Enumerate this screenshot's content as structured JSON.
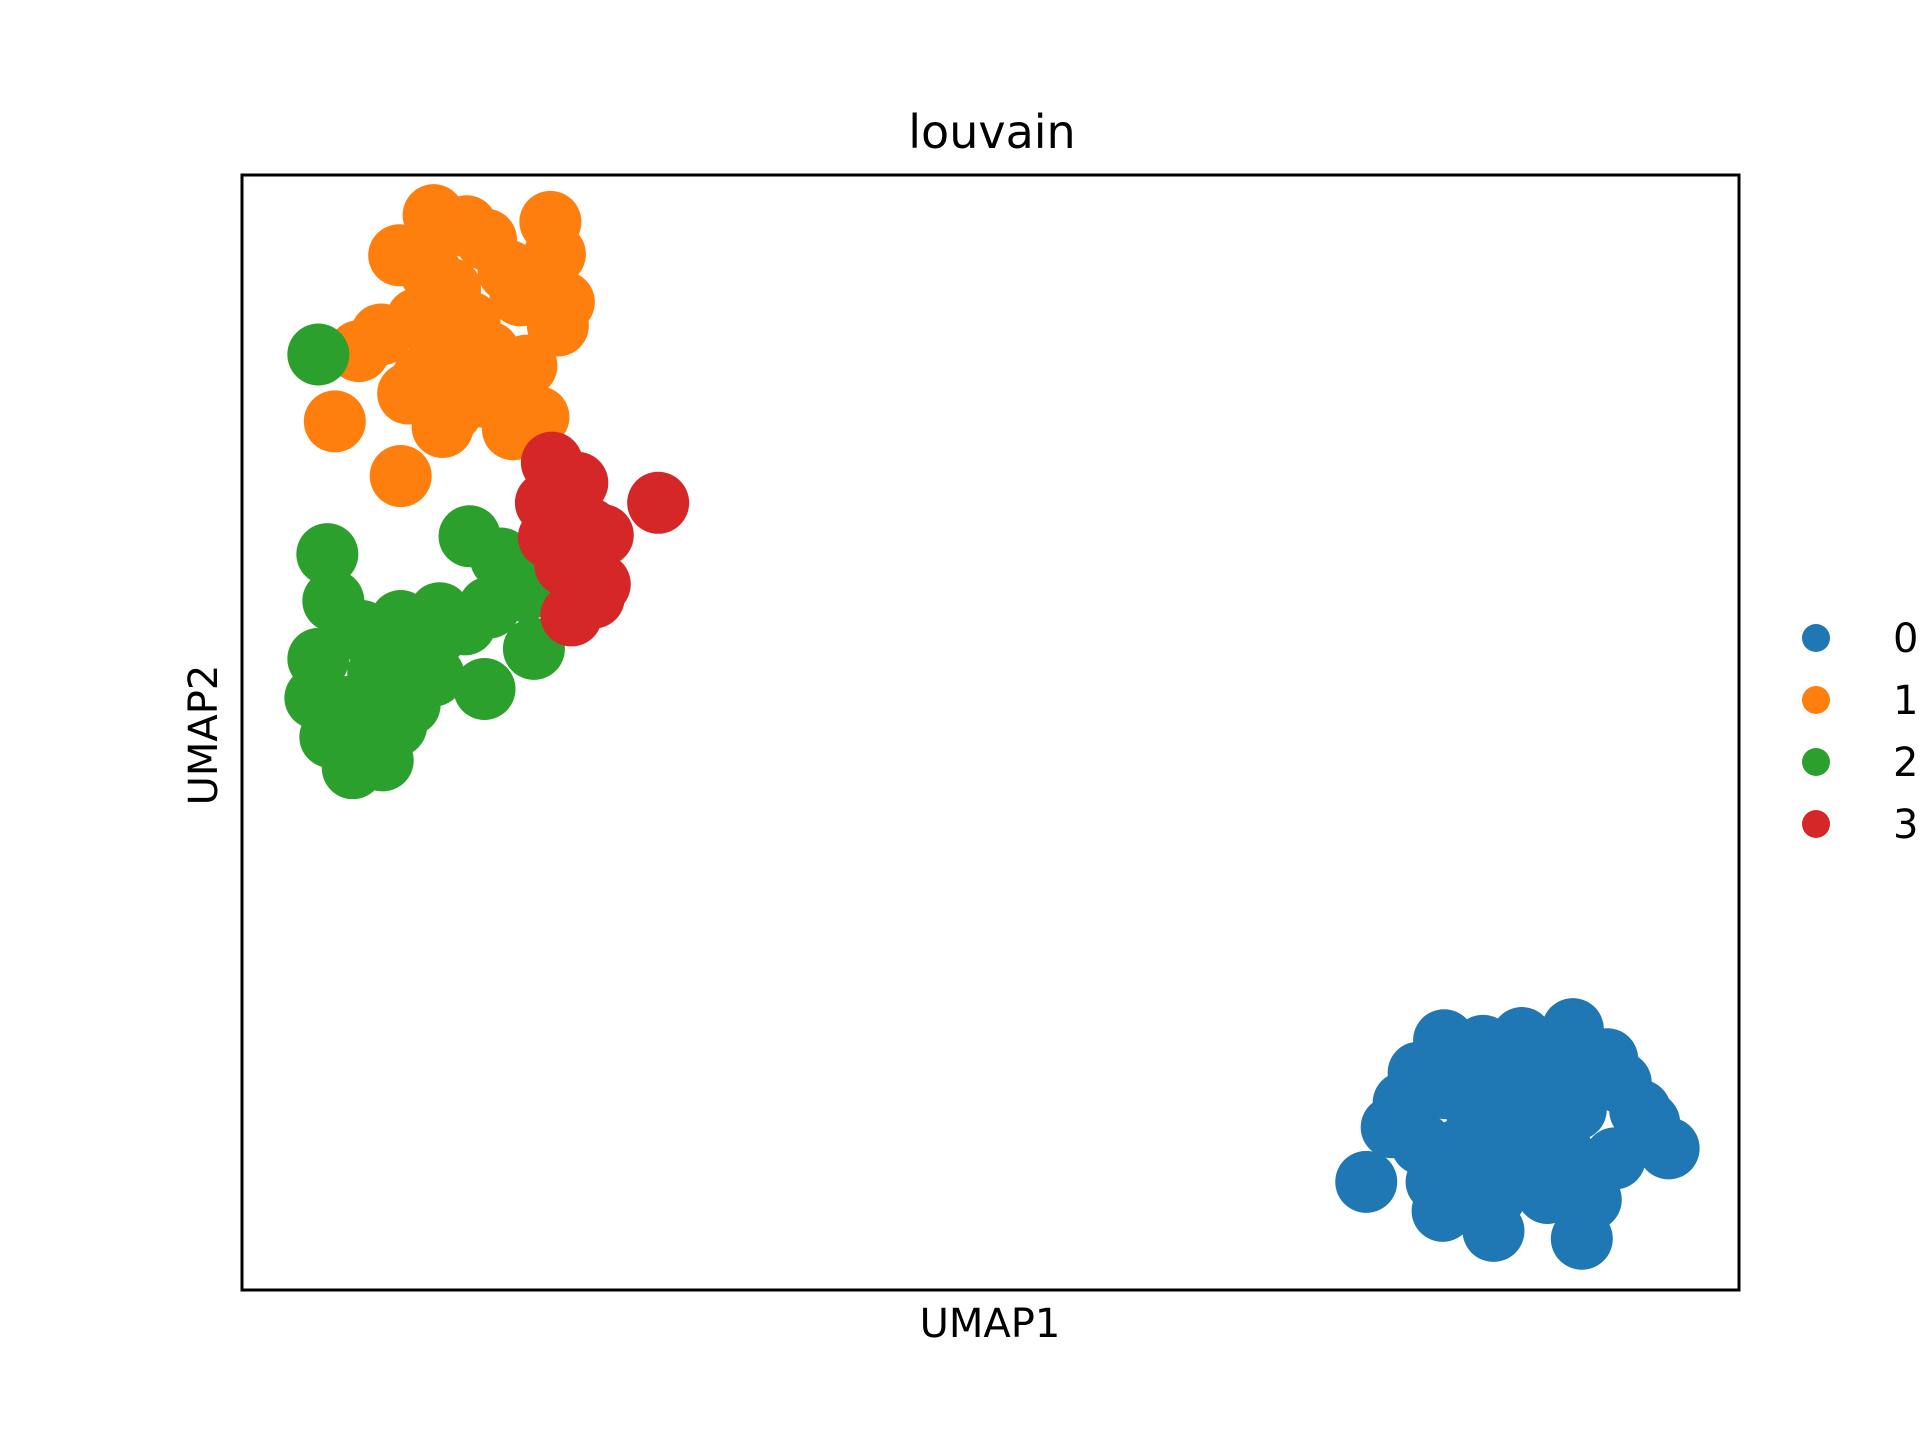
{
  "chart_data": {
    "type": "scatter",
    "title": "louvain",
    "xlabel": "UMAP1",
    "ylabel": "UMAP2",
    "xlim": [
      0,
      100
    ],
    "ylim": [
      0,
      100
    ],
    "ticks": "none",
    "grid": false,
    "legend_position": "right-outside",
    "series": [
      {
        "name": "0",
        "color": "#1f77b4",
        "points": [
          [
            76.8,
            14.6
          ],
          [
            78.8,
            13.1
          ],
          [
            75.1,
            9.7
          ],
          [
            79.8,
            9.7
          ],
          [
            92.1,
            18.6
          ],
          [
            91.2,
            20.7
          ],
          [
            88.9,
            23.4
          ],
          [
            85.5,
            22.6
          ],
          [
            82.9,
            21.9
          ],
          [
            80.3,
            22.4
          ],
          [
            82.0,
            20.4
          ],
          [
            78.6,
            19.5
          ],
          [
            80.4,
            18.1
          ],
          [
            77.6,
            16.8
          ],
          [
            95.3,
            12.7
          ],
          [
            93.4,
            16.1
          ],
          [
            94.0,
            15.0
          ],
          [
            91.7,
            11.8
          ],
          [
            89.5,
            4.6
          ],
          [
            90.1,
            8.1
          ],
          [
            87.2,
            8.7
          ],
          [
            83.7,
            8.4
          ],
          [
            80.6,
            8.9
          ],
          [
            83.6,
            5.3
          ],
          [
            80.2,
            7.1
          ],
          [
            85.1,
            11.3
          ],
          [
            86.8,
            14.3
          ],
          [
            84.5,
            17.3
          ],
          [
            87.9,
            19.6
          ],
          [
            82.5,
            15.8
          ],
          [
            89.1,
            16.2
          ],
          [
            81.3,
            12.6
          ],
          [
            86.3,
            10.1
          ],
          [
            88.2,
            12.4
          ],
          [
            83.8,
            13.5
          ],
          [
            86.9,
            16.8
          ],
          [
            84.4,
            19.8
          ],
          [
            81.9,
            10.7
          ]
        ]
      },
      {
        "name": "1",
        "color": "#ff7f0e",
        "points": [
          [
            15.0,
            95.4
          ],
          [
            20.6,
            95.8
          ],
          [
            16.3,
            94.2
          ],
          [
            12.8,
            96.4
          ],
          [
            10.5,
            92.8
          ],
          [
            20.9,
            92.9
          ],
          [
            17.8,
            91.4
          ],
          [
            21.1,
            86.5
          ],
          [
            21.5,
            88.6
          ],
          [
            14.6,
            83.9
          ],
          [
            19.0,
            82.9
          ],
          [
            16.2,
            80.1
          ],
          [
            12.1,
            81.9
          ],
          [
            13.4,
            77.4
          ],
          [
            11.1,
            80.4
          ],
          [
            9.3,
            85.7
          ],
          [
            7.8,
            84.2
          ],
          [
            6.2,
            77.9
          ],
          [
            10.6,
            73.0
          ],
          [
            18.1,
            77.2
          ],
          [
            14.0,
            78.8
          ],
          [
            16.5,
            84.1
          ],
          [
            18.6,
            89.2
          ],
          [
            13.9,
            89.8
          ],
          [
            11.7,
            87.1
          ],
          [
            19.8,
            78.3
          ],
          [
            15.2,
            86.8
          ],
          [
            17.5,
            80.6
          ],
          [
            12.6,
            91.3
          ]
        ]
      },
      {
        "name": "2",
        "color": "#2ca02c",
        "points": [
          [
            5.1,
            83.9
          ],
          [
            5.7,
            66.0
          ],
          [
            15.2,
            67.6
          ],
          [
            17.3,
            65.6
          ],
          [
            18.8,
            62.7
          ],
          [
            19.5,
            57.5
          ],
          [
            16.2,
            53.9
          ],
          [
            13.2,
            60.7
          ],
          [
            10.6,
            60.0
          ],
          [
            11.5,
            58.2
          ],
          [
            8.0,
            59.1
          ],
          [
            6.1,
            61.8
          ],
          [
            5.1,
            56.6
          ],
          [
            4.9,
            53.1
          ],
          [
            5.9,
            49.6
          ],
          [
            7.4,
            46.8
          ],
          [
            9.4,
            47.5
          ],
          [
            10.3,
            50.6
          ],
          [
            12.8,
            55.1
          ],
          [
            13.1,
            58.9
          ],
          [
            9.1,
            55.3
          ],
          [
            7.1,
            52.3
          ],
          [
            8.7,
            58.6
          ],
          [
            14.9,
            59.7
          ],
          [
            16.5,
            61.2
          ],
          [
            11.2,
            52.5
          ],
          [
            6.7,
            49.1
          ],
          [
            9.8,
            53.4
          ]
        ]
      },
      {
        "name": "3",
        "color": "#d62728",
        "points": [
          [
            20.7,
            74.2
          ],
          [
            22.4,
            72.4
          ],
          [
            27.8,
            70.6
          ],
          [
            20.3,
            70.6
          ],
          [
            23.2,
            68.3
          ],
          [
            20.5,
            67.5
          ],
          [
            24.1,
            67.7
          ],
          [
            21.6,
            65.0
          ],
          [
            23.9,
            63.3
          ],
          [
            22.0,
            60.5
          ],
          [
            22.6,
            64.3
          ],
          [
            23.5,
            62.1
          ]
        ]
      }
    ]
  }
}
